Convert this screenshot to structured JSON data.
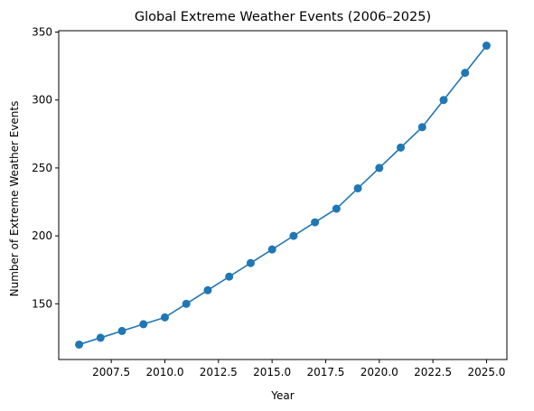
{
  "chart_data": {
    "type": "line",
    "title": "Global Extreme Weather Events (2006–2025)",
    "xlabel": "Year",
    "ylabel": "Number of Extreme Weather Events",
    "x": [
      2006,
      2007,
      2008,
      2009,
      2010,
      2011,
      2012,
      2013,
      2014,
      2015,
      2016,
      2017,
      2018,
      2019,
      2020,
      2021,
      2022,
      2023,
      2024,
      2025
    ],
    "series": [
      {
        "values": [
          120,
          125,
          130,
          135,
          140,
          150,
          160,
          170,
          180,
          190,
          200,
          210,
          220,
          235,
          250,
          265,
          280,
          300,
          320,
          340
        ],
        "color": "#1f77b4",
        "marker": "circle"
      }
    ],
    "x_ticks": [
      2007.5,
      2010.0,
      2012.5,
      2015.0,
      2017.5,
      2020.0,
      2022.5,
      2025.0
    ],
    "x_tick_labels": [
      "2007.5",
      "2010.0",
      "2012.5",
      "2015.0",
      "2017.5",
      "2020.0",
      "2022.5",
      "2025.0"
    ],
    "y_ticks": [
      150,
      200,
      250,
      300,
      350
    ],
    "y_tick_labels": [
      "150",
      "200",
      "250",
      "300",
      "350"
    ],
    "xlim": [
      2005.05,
      2025.95
    ],
    "ylim": [
      109,
      351
    ],
    "grid": false,
    "legend": "none"
  }
}
